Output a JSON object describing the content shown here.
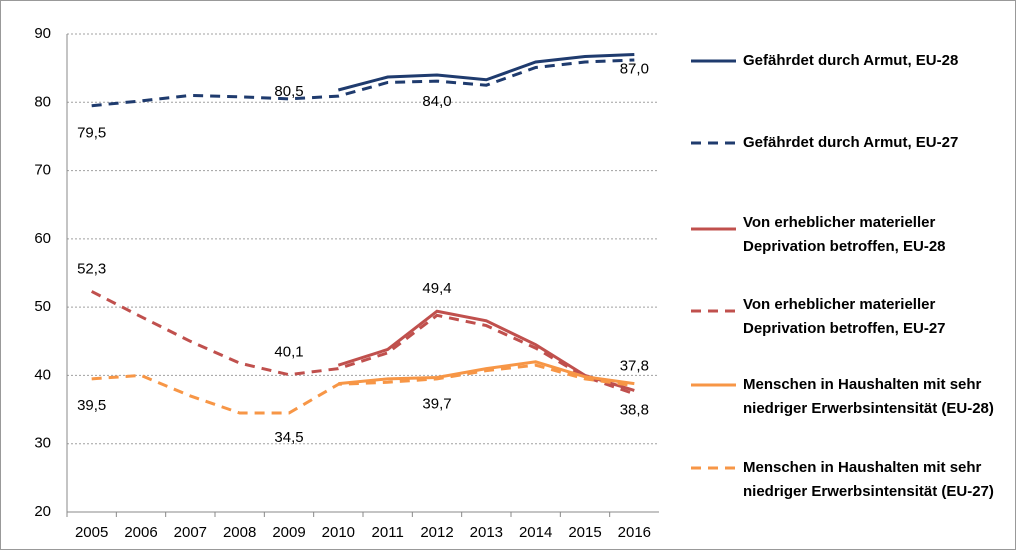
{
  "chart_data": {
    "type": "line",
    "categories": [
      "2005",
      "2006",
      "2007",
      "2008",
      "2009",
      "2010",
      "2011",
      "2012",
      "2013",
      "2014",
      "2015",
      "2016"
    ],
    "ylim": [
      20,
      90
    ],
    "yticks": [
      20,
      30,
      40,
      50,
      60,
      70,
      80,
      90
    ],
    "grid": true,
    "legend": "right",
    "series": [
      {
        "name": "Gefährdet durch Armut, EU-28",
        "color": "#1f3b6e",
        "dashed": false,
        "values": [
          null,
          null,
          null,
          null,
          null,
          81.8,
          83.7,
          84.0,
          83.3,
          85.9,
          86.7,
          87.0
        ],
        "value_labels": [
          null,
          null,
          null,
          null,
          null,
          null,
          null,
          "84,0",
          null,
          null,
          null,
          "87,0"
        ]
      },
      {
        "name": "Gefährdet durch Armut, EU-27",
        "color": "#1f3b6e",
        "dashed": true,
        "values": [
          79.5,
          80.2,
          81.0,
          80.8,
          80.5,
          80.9,
          82.9,
          83.1,
          82.5,
          85.1,
          85.9,
          86.2
        ],
        "value_labels": [
          "79,5",
          null,
          null,
          null,
          "80,5",
          null,
          null,
          null,
          null,
          null,
          null,
          null
        ]
      },
      {
        "name": "Von erheblicher materieller Deprivation betroffen, EU-28",
        "color": "#c0504d",
        "dashed": false,
        "values": [
          null,
          null,
          null,
          null,
          null,
          41.5,
          43.8,
          49.4,
          48.0,
          44.5,
          40.0,
          37.8
        ],
        "value_labels": [
          null,
          null,
          null,
          null,
          null,
          null,
          null,
          "49,4",
          null,
          null,
          null,
          "37,8"
        ]
      },
      {
        "name": "Von erheblicher materieller Deprivation betroffen, EU-27",
        "color": "#c0504d",
        "dashed": true,
        "values": [
          52.3,
          48.6,
          45.0,
          41.8,
          40.1,
          41.0,
          43.3,
          48.8,
          47.3,
          44.0,
          39.8,
          37.3
        ],
        "value_labels": [
          "52,3",
          null,
          null,
          null,
          "40,1",
          null,
          null,
          null,
          null,
          null,
          null,
          null
        ]
      },
      {
        "name": "Menschen in Haushalten mit sehr niedriger Erwerbsintensität (EU-28)",
        "color": "#f79646",
        "dashed": false,
        "values": [
          null,
          null,
          null,
          null,
          null,
          38.8,
          39.5,
          39.7,
          41.0,
          42.0,
          39.8,
          38.8
        ],
        "value_labels": [
          null,
          null,
          null,
          null,
          null,
          null,
          null,
          "39,7",
          null,
          null,
          null,
          "38,8"
        ]
      },
      {
        "name": "Menschen in Haushalten mit sehr niedriger Erwerbsintensität (EU-27)",
        "color": "#f79646",
        "dashed": true,
        "values": [
          39.5,
          40.0,
          37.0,
          34.5,
          34.5,
          38.7,
          39.0,
          39.5,
          40.7,
          41.5,
          39.5,
          38.5
        ],
        "value_labels": [
          "39,5",
          null,
          null,
          null,
          "34,5",
          null,
          null,
          null,
          null,
          null,
          null,
          null
        ]
      }
    ]
  }
}
